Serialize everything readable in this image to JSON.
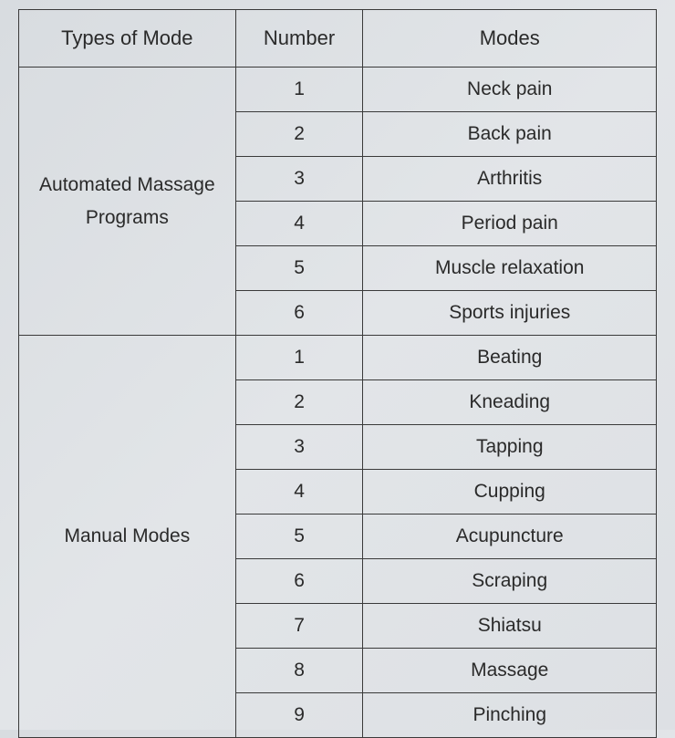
{
  "table": {
    "headers": {
      "type": "Types of Mode",
      "number": "Number",
      "modes": "Modes"
    },
    "groups": [
      {
        "labelLine1": "Automated Massage",
        "labelLine2": "Programs",
        "rows": [
          {
            "num": "1",
            "mode": "Neck pain"
          },
          {
            "num": "2",
            "mode": "Back pain"
          },
          {
            "num": "3",
            "mode": "Arthritis"
          },
          {
            "num": "4",
            "mode": "Period pain"
          },
          {
            "num": "5",
            "mode": "Muscle relaxation"
          },
          {
            "num": "6",
            "mode": "Sports injuries"
          }
        ]
      },
      {
        "labelLine1": "Manual Modes",
        "labelLine2": "",
        "rows": [
          {
            "num": "1",
            "mode": "Beating"
          },
          {
            "num": "2",
            "mode": "Kneading"
          },
          {
            "num": "3",
            "mode": "Tapping"
          },
          {
            "num": "4",
            "mode": "Cupping"
          },
          {
            "num": "5",
            "mode": "Acupuncture"
          },
          {
            "num": "6",
            "mode": "Scraping"
          },
          {
            "num": "7",
            "mode": "Shiatsu"
          },
          {
            "num": "8",
            "mode": "Massage"
          },
          {
            "num": "9",
            "mode": "Pinching"
          }
        ]
      }
    ],
    "styling": {
      "border_color": "#3a3a3a",
      "border_width": 1.5,
      "background_gradient": [
        "#d8dce0",
        "#e2e5e8",
        "#dde0e4"
      ],
      "text_color": "#2a2a2a",
      "header_fontsize": 22,
      "cell_fontsize": 21,
      "font_family": "Segoe UI, Arial, sans-serif",
      "col_widths_pct": [
        34,
        20,
        46
      ]
    }
  }
}
